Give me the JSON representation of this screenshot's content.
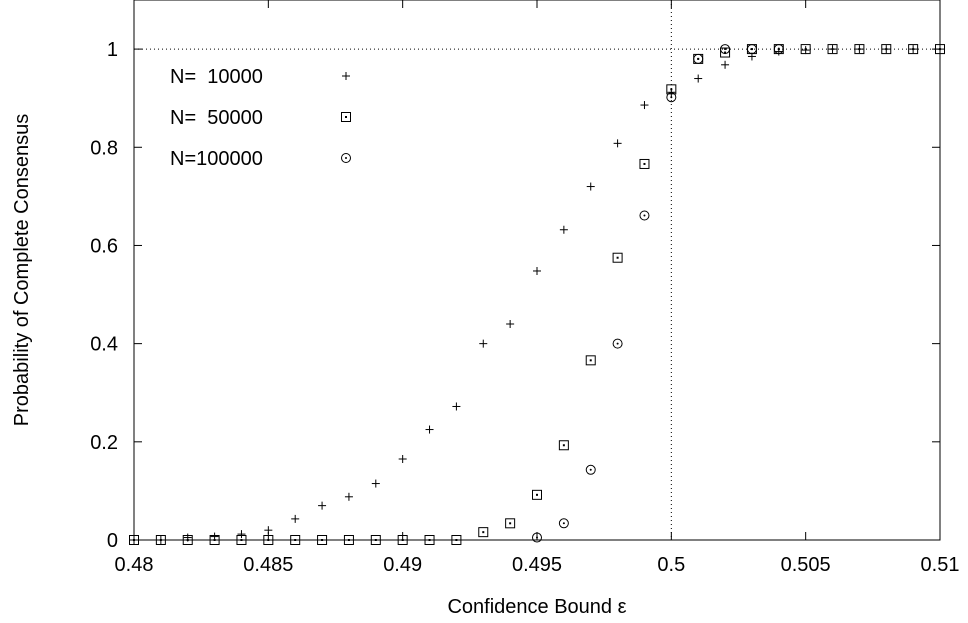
{
  "chart_data": {
    "type": "scatter",
    "title": "",
    "xlabel": "Confidence Bound ε",
    "ylabel": "Probability of Complete Consensus",
    "xlim": [
      0.48,
      0.51
    ],
    "ylim": [
      0,
      1.1
    ],
    "x_ticks": [
      0.48,
      0.485,
      0.49,
      0.495,
      0.5,
      0.505,
      0.51
    ],
    "x_tick_labels": [
      "0.48",
      "0.485",
      "0.49",
      "0.495",
      "0.5",
      "0.505",
      "0.51"
    ],
    "y_ticks": [
      0,
      0.2,
      0.4,
      0.6,
      0.8,
      1
    ],
    "y_tick_labels": [
      "0",
      "0.2",
      "0.4",
      "0.6",
      "0.8",
      "1"
    ],
    "reference_lines": {
      "horizontal_y": 1,
      "vertical_x": 0.5,
      "style": "dotted"
    },
    "grid": false,
    "legend_position": "top-left",
    "series": [
      {
        "name": "N=  10000",
        "marker": "plus",
        "points": [
          [
            0.48,
            0.0
          ],
          [
            0.481,
            0.0
          ],
          [
            0.482,
            0.005
          ],
          [
            0.483,
            0.007
          ],
          [
            0.484,
            0.012
          ],
          [
            0.485,
            0.02
          ],
          [
            0.486,
            0.043
          ],
          [
            0.487,
            0.07
          ],
          [
            0.488,
            0.088
          ],
          [
            0.489,
            0.115
          ],
          [
            0.49,
            0.165
          ],
          [
            0.491,
            0.225
          ],
          [
            0.492,
            0.272
          ],
          [
            0.493,
            0.4
          ],
          [
            0.494,
            0.44
          ],
          [
            0.495,
            0.548
          ],
          [
            0.496,
            0.632
          ],
          [
            0.497,
            0.72
          ],
          [
            0.498,
            0.808
          ],
          [
            0.499,
            0.886
          ],
          [
            0.5,
            0.912
          ],
          [
            0.501,
            0.94
          ],
          [
            0.502,
            0.968
          ],
          [
            0.503,
            0.985
          ],
          [
            0.504,
            0.995
          ],
          [
            0.505,
            0.998
          ],
          [
            0.506,
            1.0
          ],
          [
            0.507,
            1.0
          ],
          [
            0.508,
            1.0
          ],
          [
            0.509,
            1.0
          ],
          [
            0.51,
            1.0
          ]
        ]
      },
      {
        "name": "N=  50000",
        "marker": "dotted-square",
        "points": [
          [
            0.48,
            0.0
          ],
          [
            0.481,
            0.0
          ],
          [
            0.482,
            0.0
          ],
          [
            0.483,
            0.0
          ],
          [
            0.484,
            0.0
          ],
          [
            0.485,
            0.0
          ],
          [
            0.486,
            0.0
          ],
          [
            0.487,
            0.0
          ],
          [
            0.488,
            0.0
          ],
          [
            0.489,
            0.0
          ],
          [
            0.49,
            0.0
          ],
          [
            0.491,
            0.0
          ],
          [
            0.492,
            0.0
          ],
          [
            0.493,
            0.016
          ],
          [
            0.494,
            0.034
          ],
          [
            0.495,
            0.092
          ],
          [
            0.496,
            0.193
          ],
          [
            0.497,
            0.366
          ],
          [
            0.498,
            0.575
          ],
          [
            0.499,
            0.766
          ],
          [
            0.5,
            0.918
          ],
          [
            0.501,
            0.98
          ],
          [
            0.502,
            0.993
          ],
          [
            0.503,
            1.0
          ],
          [
            0.504,
            1.0
          ],
          [
            0.505,
            1.0
          ],
          [
            0.506,
            1.0
          ],
          [
            0.507,
            1.0
          ],
          [
            0.508,
            1.0
          ],
          [
            0.509,
            1.0
          ],
          [
            0.51,
            1.0
          ]
        ]
      },
      {
        "name": "N=100000",
        "marker": "dotted-circle",
        "points": [
          [
            0.495,
            0.005
          ],
          [
            0.496,
            0.034
          ],
          [
            0.497,
            0.143
          ],
          [
            0.498,
            0.4
          ],
          [
            0.499,
            0.661
          ],
          [
            0.5,
            0.902
          ],
          [
            0.501,
            0.98
          ],
          [
            0.502,
            1.0
          ],
          [
            0.503,
            1.0
          ],
          [
            0.504,
            1.0
          ]
        ]
      }
    ]
  }
}
